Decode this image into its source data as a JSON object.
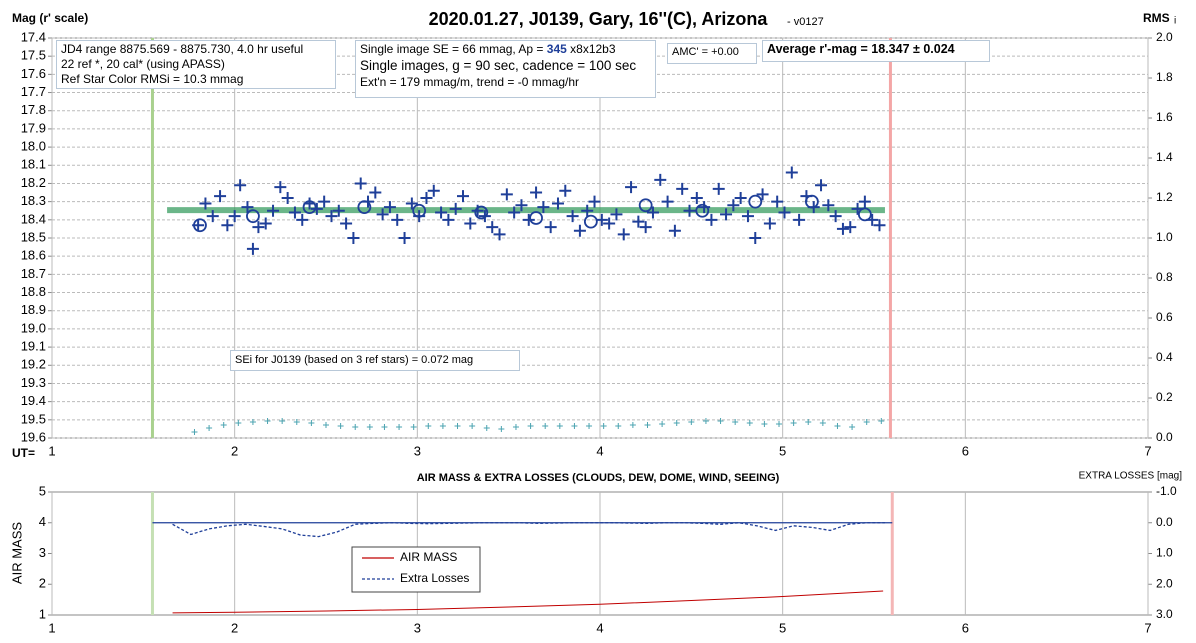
{
  "chart_data": [
    {
      "type": "scatter",
      "title": "2020.01.27, J0139, Gary, 16''(C), Arizona",
      "title_suffix": "- v0127",
      "ylabel": "Mag (r' scale)",
      "y2label": "RMS",
      "y2label_suffix": "i",
      "xlabel": "UT=",
      "xlim": [
        1,
        7
      ],
      "xticks": [
        1,
        2,
        3,
        4,
        5,
        6,
        7
      ],
      "ylim": [
        19.6,
        17.4
      ],
      "yticks": [
        17.4,
        17.5,
        17.6,
        17.7,
        17.8,
        17.9,
        {
          "value": 18,
          "label": "18.0"
        },
        18.1,
        18.2,
        18.3,
        18.4,
        18.5,
        18.6,
        18.7,
        18.8,
        18.9,
        {
          "value": 19,
          "label": "19.0"
        },
        19.1,
        19.2,
        19.3,
        19.4,
        19.5,
        19.6
      ],
      "y2lim": [
        0,
        2
      ],
      "y2ticks": [
        {
          "value": 0,
          "label": "0.0"
        },
        0.2,
        0.4,
        0.6,
        0.8,
        {
          "value": 1,
          "label": "1.0"
        },
        1.2,
        1.4,
        1.6,
        1.8,
        {
          "value": 2,
          "label": "2.0"
        }
      ],
      "xgrid": true,
      "ygrid": true,
      "vlines": [
        {
          "x": 1.55,
          "color": "#a9d18e"
        },
        {
          "x": 5.59,
          "color": "#f4a6a6"
        }
      ],
      "reference_line": {
        "value": 18.347,
        "x": [
          1.63,
          5.56
        ],
        "color": "#3a9e62"
      },
      "series": [
        {
          "marker": "plus",
          "color": "#1f3f99",
          "x": [
            1.8,
            1.84,
            1.88,
            1.92,
            1.96,
            2.0,
            2.03,
            2.07,
            2.1,
            2.13,
            2.17,
            2.21,
            2.25,
            2.29,
            2.33,
            2.37,
            2.41,
            2.45,
            2.49,
            2.53,
            2.57,
            2.61,
            2.65,
            2.69,
            2.73,
            2.77,
            2.81,
            2.85,
            2.89,
            2.93,
            2.97,
            3.01,
            3.05,
            3.09,
            3.13,
            3.17,
            3.21,
            3.25,
            3.29,
            3.33,
            3.37,
            3.41,
            3.45,
            3.49,
            3.53,
            3.57,
            3.61,
            3.65,
            3.69,
            3.73,
            3.77,
            3.81,
            3.85,
            3.89,
            3.93,
            3.97,
            4.01,
            4.05,
            4.09,
            4.13,
            4.17,
            4.21,
            4.25,
            4.29,
            4.33,
            4.37,
            4.41,
            4.45,
            4.49,
            4.53,
            4.57,
            4.61,
            4.65,
            4.69,
            4.73,
            4.77,
            4.81,
            4.85,
            4.89,
            4.93,
            4.97,
            5.01,
            5.05,
            5.09,
            5.13,
            5.17,
            5.21,
            5.25,
            5.29,
            5.33,
            5.37,
            5.41,
            5.45,
            5.49,
            5.53
          ],
          "values": [
            18.43,
            18.31,
            18.38,
            18.27,
            18.43,
            18.38,
            18.21,
            18.33,
            18.56,
            18.44,
            18.42,
            18.35,
            18.22,
            18.28,
            18.36,
            18.4,
            18.31,
            18.34,
            18.3,
            18.38,
            18.35,
            18.42,
            18.5,
            18.2,
            18.3,
            18.25,
            18.37,
            18.33,
            18.4,
            18.5,
            18.31,
            18.38,
            18.28,
            18.24,
            18.36,
            18.4,
            18.34,
            18.27,
            18.42,
            18.35,
            18.38,
            18.44,
            18.48,
            18.26,
            18.36,
            18.32,
            18.4,
            18.25,
            18.33,
            18.44,
            18.31,
            18.24,
            18.38,
            18.46,
            18.35,
            18.3,
            18.4,
            18.42,
            18.37,
            18.48,
            18.22,
            18.41,
            18.44,
            18.36,
            18.18,
            18.3,
            18.46,
            18.23,
            18.35,
            18.28,
            18.33,
            18.4,
            18.23,
            18.37,
            18.32,
            18.28,
            18.38,
            18.5,
            18.26,
            18.42,
            18.3,
            18.36,
            18.14,
            18.4,
            18.27,
            18.33,
            18.21,
            18.32,
            18.38,
            18.45,
            18.44,
            18.34,
            18.3,
            18.4,
            18.43
          ]
        },
        {
          "marker": "circle",
          "color": "#1f3f99",
          "x": [
            1.81,
            2.1,
            2.41,
            2.71,
            3.01,
            3.35,
            3.65,
            3.95,
            4.25,
            4.56,
            4.85,
            5.16,
            5.45
          ],
          "values": [
            18.43,
            18.38,
            18.33,
            18.33,
            18.35,
            18.36,
            18.39,
            18.41,
            18.32,
            18.35,
            18.3,
            18.3,
            18.37
          ]
        },
        {
          "marker": "small-plus",
          "color": "#4aa3b0",
          "axis": "y2",
          "x": [
            1.78,
            1.86,
            1.94,
            2.02,
            2.1,
            2.18,
            2.26,
            2.34,
            2.42,
            2.5,
            2.58,
            2.66,
            2.74,
            2.82,
            2.9,
            2.98,
            3.06,
            3.14,
            3.22,
            3.3,
            3.38,
            3.46,
            3.54,
            3.62,
            3.7,
            3.78,
            3.86,
            3.94,
            4.02,
            4.1,
            4.18,
            4.26,
            4.34,
            4.42,
            4.5,
            4.58,
            4.66,
            4.74,
            4.82,
            4.9,
            4.98,
            5.06,
            5.14,
            5.22,
            5.3,
            5.38,
            5.46,
            5.54
          ],
          "values": [
            0.03,
            0.05,
            0.065,
            0.075,
            0.08,
            0.085,
            0.085,
            0.08,
            0.075,
            0.065,
            0.06,
            0.055,
            0.055,
            0.055,
            0.055,
            0.055,
            0.06,
            0.06,
            0.06,
            0.06,
            0.05,
            0.045,
            0.055,
            0.06,
            0.06,
            0.06,
            0.06,
            0.06,
            0.06,
            0.06,
            0.065,
            0.065,
            0.07,
            0.075,
            0.08,
            0.085,
            0.085,
            0.08,
            0.075,
            0.07,
            0.07,
            0.075,
            0.08,
            0.075,
            0.06,
            0.055,
            0.08,
            0.085
          ]
        }
      ],
      "annotations": [
        {
          "lines": [
            "JD4 range 8875.569 - 8875.730, 4.0 hr useful",
            "22 ref *, 20 cal* (using APASS)",
            "Ref Star Color RMSi = 10.3 mmag"
          ]
        },
        {
          "lines": [
            [
              "Single image SE = 66 mmag, Ap = ",
              "345",
              " x8x12b3"
            ],
            "Single images, g = 90 sec, cadence = 100 sec",
            "Ext'n = 179 mmag/m, trend = -0 mmag/hr"
          ]
        },
        {
          "lines": [
            "AMC' = +0.00"
          ]
        },
        {
          "lines": [
            "Average r'-mag =  18.347 ± 0.024"
          ]
        },
        {
          "lines": [
            "SEi for J0139 (based on 3 ref stars) = 0.072 mag"
          ]
        }
      ]
    },
    {
      "type": "line",
      "title": "AIR MASS & EXTRA LOSSES (CLOUDS, DEW, DOME, WIND, SEEING)",
      "ylabel": "AIR MASS",
      "y2label": "EXTRA LOSSES [mag]",
      "xlim": [
        1,
        7
      ],
      "xticks": [
        1,
        2,
        3,
        4,
        5,
        6,
        7
      ],
      "ylim": [
        1,
        5
      ],
      "yticks": [
        1,
        2,
        3,
        4,
        5
      ],
      "y2lim": [
        3,
        -1
      ],
      "y2ticks": [
        {
          "value": -1,
          "label": "-1.0"
        },
        {
          "value": 0,
          "label": "0.0"
        },
        {
          "value": 1,
          "label": "1.0"
        },
        {
          "value": 2,
          "label": "2.0"
        },
        {
          "value": 3,
          "label": "3.0"
        }
      ],
      "xgrid": true,
      "ygrid": false,
      "legend": true,
      "vlines": [
        {
          "x": 1.55,
          "color": "#c5e0b4"
        },
        {
          "x": 5.6,
          "color": "#f4b6b6"
        }
      ],
      "reference_line": {
        "value": 0,
        "axis": "y2",
        "x": [
          1.55,
          5.6
        ],
        "color": "#1f3f99"
      },
      "series": [
        {
          "name": "AIR MASS",
          "color": "#c00000",
          "x": [
            1.66,
            2.0,
            2.5,
            3.0,
            3.5,
            4.0,
            4.5,
            5.0,
            5.55
          ],
          "values": [
            1.07,
            1.09,
            1.13,
            1.18,
            1.26,
            1.35,
            1.47,
            1.6,
            1.78
          ]
        },
        {
          "name": "Extra Losses",
          "color": "#1f3f99",
          "axis": "y2",
          "dashed": true,
          "x": [
            1.66,
            1.76,
            1.86,
            1.96,
            2.06,
            2.16,
            2.26,
            2.36,
            2.46,
            2.56,
            2.66,
            2.76,
            2.86,
            2.96,
            3.06,
            3.16,
            3.26,
            3.36,
            3.46,
            3.56,
            3.66,
            3.76,
            3.86,
            3.96,
            4.06,
            4.16,
            4.26,
            4.36,
            4.46,
            4.56,
            4.66,
            4.76,
            4.86,
            4.96,
            5.06,
            5.16,
            5.26,
            5.36,
            5.46,
            5.56
          ],
          "values": [
            0.05,
            0.38,
            0.2,
            0.1,
            0.05,
            0.12,
            0.2,
            0.4,
            0.45,
            0.3,
            0.05,
            0.02,
            0.0,
            0.02,
            0.03,
            0.02,
            0.01,
            0.0,
            0.0,
            0.0,
            0.02,
            0.01,
            0.0,
            0.0,
            0.0,
            0.01,
            0.02,
            0.0,
            0.0,
            0.02,
            0.05,
            0.0,
            0.1,
            0.25,
            0.1,
            0.15,
            0.25,
            0.05,
            0.0,
            0.0
          ]
        }
      ]
    }
  ]
}
